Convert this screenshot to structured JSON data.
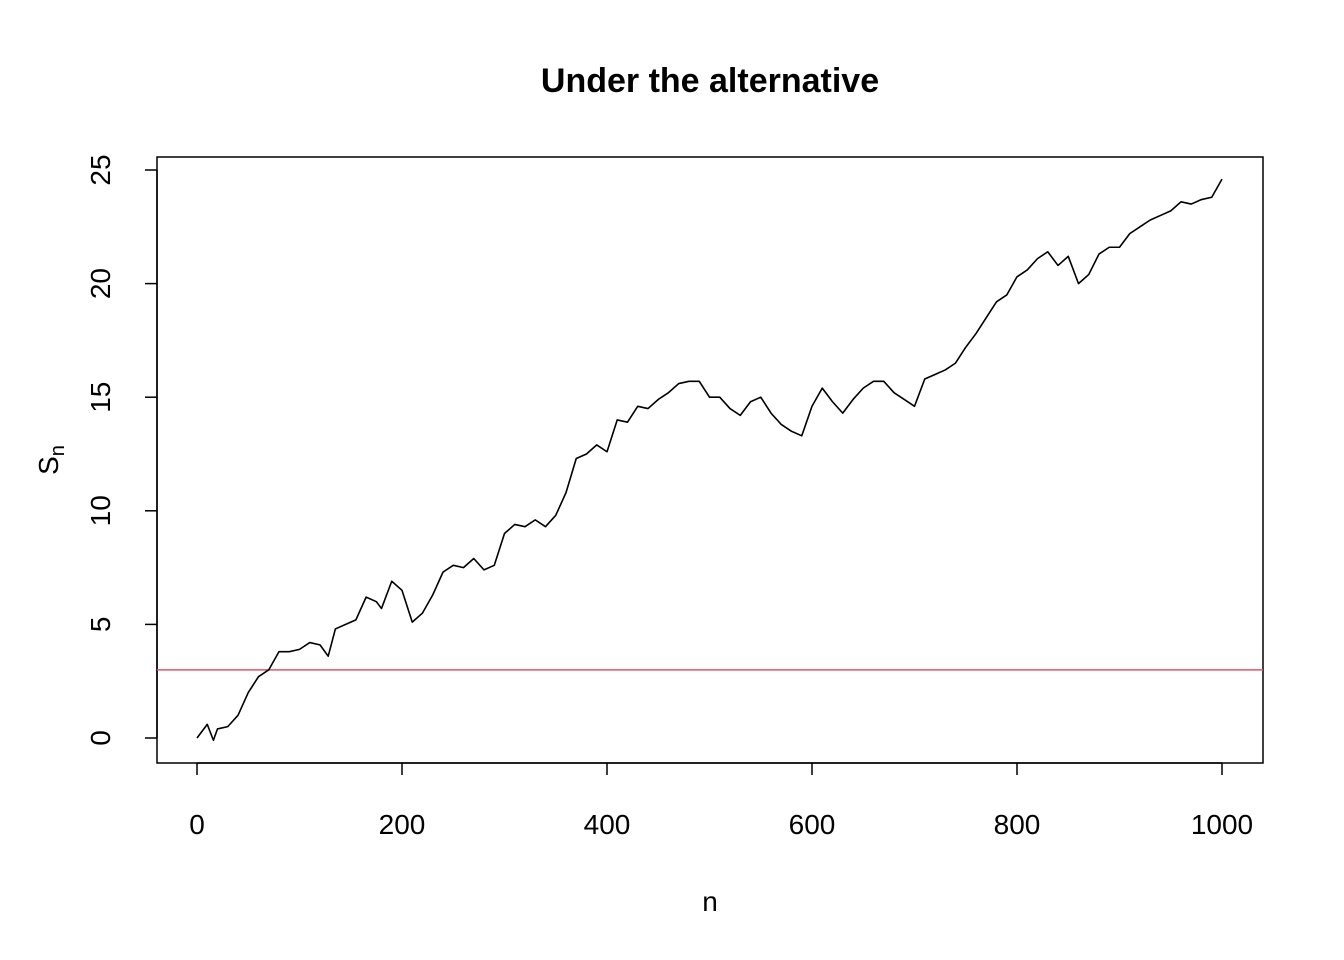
{
  "chart_data": {
    "type": "line",
    "title": "Under the alternative",
    "xlabel": "n",
    "ylabel_main": "S",
    "ylabel_sub": "n",
    "xlim": [
      0,
      1000
    ],
    "ylim": [
      0,
      25
    ],
    "xticks": [
      0,
      200,
      400,
      600,
      800,
      1000
    ],
    "yticks": [
      0,
      5,
      10,
      15,
      20,
      25
    ],
    "x_tick_labels": [
      "0",
      "200",
      "400",
      "600",
      "800",
      "1000"
    ],
    "y_tick_labels": [
      "0",
      "5",
      "10",
      "15",
      "20",
      "25"
    ],
    "grid": false,
    "series": [
      {
        "color": "#000000",
        "x": [
          0,
          10,
          16,
          20,
          30,
          40,
          50,
          60,
          70,
          80,
          90,
          100,
          110,
          120,
          128,
          135,
          145,
          155,
          165,
          175,
          180,
          190,
          200,
          210,
          220,
          230,
          240,
          250,
          260,
          270,
          280,
          290,
          300,
          310,
          320,
          330,
          340,
          350,
          360,
          370,
          380,
          390,
          400,
          410,
          420,
          430,
          440,
          450,
          460,
          470,
          480,
          490,
          500,
          510,
          520,
          530,
          540,
          550,
          560,
          570,
          580,
          590,
          600,
          610,
          620,
          630,
          640,
          650,
          660,
          670,
          680,
          690,
          700,
          710,
          720,
          730,
          740,
          750,
          760,
          770,
          780,
          790,
          800,
          810,
          820,
          830,
          840,
          850,
          860,
          870,
          880,
          890,
          900,
          910,
          920,
          930,
          940,
          950,
          960,
          970,
          980,
          990,
          1000
        ],
        "y": [
          0,
          0.6,
          -0.1,
          0.4,
          0.5,
          1.0,
          2.0,
          2.7,
          3.0,
          3.8,
          3.8,
          3.9,
          4.2,
          4.1,
          3.6,
          4.8,
          5.0,
          5.2,
          6.2,
          6.0,
          5.7,
          6.9,
          6.5,
          5.1,
          5.5,
          6.3,
          7.3,
          7.6,
          7.5,
          7.9,
          7.4,
          7.6,
          9.0,
          9.4,
          9.3,
          9.6,
          9.3,
          9.8,
          10.8,
          12.3,
          12.5,
          12.9,
          12.6,
          14.0,
          13.9,
          14.6,
          14.5,
          14.9,
          15.2,
          15.6,
          15.7,
          15.7,
          15.0,
          15.0,
          14.5,
          14.2,
          14.8,
          15.0,
          14.3,
          13.8,
          13.5,
          13.3,
          14.6,
          15.4,
          14.8,
          14.3,
          14.9,
          15.4,
          15.7,
          15.7,
          15.2,
          14.9,
          14.6,
          15.8,
          16.0,
          16.2,
          16.5,
          17.2,
          17.8,
          18.5,
          19.2,
          19.5,
          20.3,
          20.6,
          21.1,
          21.4,
          20.8,
          21.2,
          20.0,
          20.4,
          21.3,
          21.6,
          21.6,
          22.2,
          22.5,
          22.8,
          23.0,
          23.2,
          23.6,
          23.5,
          23.7,
          23.8,
          24.6
        ]
      }
    ],
    "hline": {
      "y": 3,
      "color": "#DF536B"
    }
  }
}
